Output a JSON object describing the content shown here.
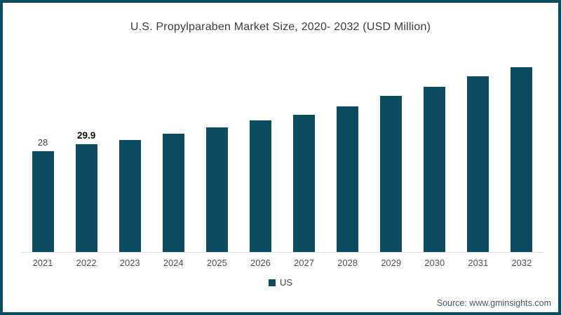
{
  "frame": {
    "border_color": "#0b4c61",
    "background": "#ffffff"
  },
  "chart_data": {
    "type": "bar",
    "title": "U.S. Propylparaben Market Size, 2020- 2032 (USD Million)",
    "categories": [
      "2021",
      "2022",
      "2023",
      "2024",
      "2025",
      "2026",
      "2027",
      "2028",
      "2029",
      "2030",
      "2031",
      "2032"
    ],
    "series": [
      {
        "name": "US",
        "values": [
          28,
          29.9,
          31,
          32.8,
          34.5,
          36.5,
          38.1,
          40.5,
          43.4,
          45.9,
          48.7,
          51.3
        ],
        "data_labels": [
          "28",
          "29.9",
          "",
          "",
          "",
          "",
          "",
          "",
          "",
          "",
          "",
          ""
        ]
      }
    ],
    "xlabel": "",
    "ylabel": "",
    "ylim": [
      0,
      57.5
    ],
    "grid": false,
    "bar_color": "#0b4c61",
    "axis_line_color": "#d9d9d9",
    "legend": {
      "position": "bottom",
      "entries": [
        "US"
      ]
    }
  },
  "source": {
    "label": "Source: www.gminsights.com"
  }
}
